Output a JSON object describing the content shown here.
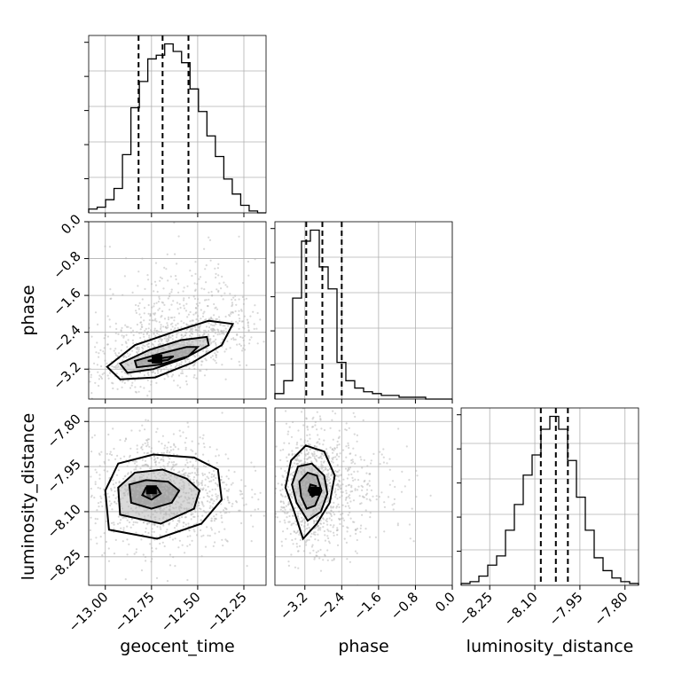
{
  "chart_data": {
    "type": "corner",
    "parameters": [
      {
        "name": "geocent_time",
        "range": [
          -13.09,
          -12.13
        ],
        "ticks": [
          -13.0,
          -12.75,
          -12.5,
          -12.25
        ],
        "tick_labels": [
          "−13.00",
          "−12.75",
          "−12.50",
          "−12.25"
        ],
        "quantiles": [
          -12.82,
          -12.69,
          -12.55
        ],
        "hist": [
          2,
          3,
          7,
          13,
          31,
          56,
          70,
          82,
          84,
          90,
          86,
          80,
          66,
          54,
          41,
          30,
          18,
          10,
          4,
          1,
          0
        ]
      },
      {
        "name": "phase",
        "range": [
          -3.85,
          0.0
        ],
        "ticks": [
          -3.2,
          -2.4,
          -1.6,
          -0.8,
          0.0
        ],
        "tick_labels": [
          "−3.2",
          "−2.4",
          "−1.6",
          "−0.8",
          "0.0"
        ],
        "quantiles": [
          -3.17,
          -2.82,
          -2.4
        ],
        "hist": [
          3,
          10,
          55,
          86,
          92,
          72,
          60,
          20,
          10,
          6,
          4,
          3,
          2,
          2,
          1,
          1,
          1,
          0,
          0,
          0
        ]
      },
      {
        "name": "luminosity_distance",
        "range": [
          -8.345,
          -7.755
        ],
        "ticks": [
          -8.25,
          -8.1,
          -7.95,
          -7.8
        ],
        "tick_labels": [
          "−8.25",
          "−8.10",
          "−7.95",
          "−7.80"
        ],
        "quantiles": [
          -8.08,
          -8.03,
          -7.99
        ],
        "hist": [
          1,
          2,
          5,
          11,
          16,
          30,
          44,
          60,
          71,
          85,
          92,
          85,
          68,
          48,
          30,
          15,
          8,
          4,
          2,
          1
        ]
      }
    ],
    "pairs": [
      {
        "x": "geocent_time",
        "y": "phase",
        "peak": [
          -12.72,
          -3.0
        ],
        "contours": [
          [
            [
              -12.92,
              -3.42
            ],
            [
              -12.99,
              -3.15
            ],
            [
              -12.84,
              -2.68
            ],
            [
              -12.62,
              -2.38
            ],
            [
              -12.44,
              -2.15
            ],
            [
              -12.31,
              -2.22
            ],
            [
              -12.37,
              -2.68
            ],
            [
              -12.53,
              -3.06
            ],
            [
              -12.73,
              -3.38
            ]
          ],
          [
            [
              -12.88,
              -3.28
            ],
            [
              -12.92,
              -3.08
            ],
            [
              -12.76,
              -2.78
            ],
            [
              -12.59,
              -2.57
            ],
            [
              -12.45,
              -2.5
            ],
            [
              -12.44,
              -2.68
            ],
            [
              -12.57,
              -2.96
            ],
            [
              -12.74,
              -3.2
            ]
          ],
          [
            [
              -12.83,
              -3.16
            ],
            [
              -12.84,
              -3.02
            ],
            [
              -12.7,
              -2.86
            ],
            [
              -12.56,
              -2.72
            ],
            [
              -12.5,
              -2.72
            ],
            [
              -12.55,
              -2.92
            ],
            [
              -12.7,
              -3.1
            ]
          ],
          [
            [
              -12.77,
              -3.02
            ],
            [
              -12.7,
              -2.96
            ],
            [
              -12.63,
              -2.92
            ],
            [
              -12.66,
              -3.0
            ],
            [
              -12.72,
              -3.04
            ]
          ]
        ]
      },
      {
        "x": "geocent_time",
        "y": "luminosity_distance",
        "peak": [
          -12.75,
          -8.03
        ],
        "contours": [
          [
            [
              -12.98,
              -8.16
            ],
            [
              -13.0,
              -8.03
            ],
            [
              -12.93,
              -7.94
            ],
            [
              -12.74,
              -7.91
            ],
            [
              -12.52,
              -7.92
            ],
            [
              -12.39,
              -7.96
            ],
            [
              -12.37,
              -8.06
            ],
            [
              -12.48,
              -8.14
            ],
            [
              -12.72,
              -8.19
            ]
          ],
          [
            [
              -12.92,
              -8.11
            ],
            [
              -12.93,
              -8.02
            ],
            [
              -12.84,
              -7.97
            ],
            [
              -12.69,
              -7.96
            ],
            [
              -12.56,
              -7.99
            ],
            [
              -12.49,
              -8.03
            ],
            [
              -12.52,
              -8.09
            ],
            [
              -12.7,
              -8.14
            ]
          ],
          [
            [
              -12.86,
              -8.07
            ],
            [
              -12.87,
              -8.01
            ],
            [
              -12.78,
              -7.995
            ],
            [
              -12.66,
              -8.0
            ],
            [
              -12.6,
              -8.03
            ],
            [
              -12.64,
              -8.07
            ],
            [
              -12.75,
              -8.09
            ]
          ],
          [
            [
              -12.8,
              -8.045
            ],
            [
              -12.78,
              -8.02
            ],
            [
              -12.72,
              -8.02
            ],
            [
              -12.7,
              -8.04
            ],
            [
              -12.75,
              -8.06
            ]
          ]
        ]
      },
      {
        "x": "phase",
        "y": "luminosity_distance",
        "peak": [
          -2.98,
          -8.035
        ],
        "contours": [
          [
            [
              -3.43,
              -8.1
            ],
            [
              -3.62,
              -8.02
            ],
            [
              -3.5,
              -7.93
            ],
            [
              -3.18,
              -7.88
            ],
            [
              -2.78,
              -7.9
            ],
            [
              -2.55,
              -7.98
            ],
            [
              -2.66,
              -8.07
            ],
            [
              -2.94,
              -8.14
            ],
            [
              -3.24,
              -8.19
            ]
          ],
          [
            [
              -3.38,
              -8.07
            ],
            [
              -3.48,
              -8.01
            ],
            [
              -3.35,
              -7.95
            ],
            [
              -3.05,
              -7.94
            ],
            [
              -2.78,
              -7.98
            ],
            [
              -2.71,
              -8.04
            ],
            [
              -2.85,
              -8.1
            ],
            [
              -3.14,
              -8.13
            ]
          ],
          [
            [
              -3.28,
              -8.05
            ],
            [
              -3.32,
              -8.0
            ],
            [
              -3.14,
              -7.97
            ],
            [
              -2.94,
              -7.98
            ],
            [
              -2.84,
              -8.03
            ],
            [
              -2.98,
              -8.08
            ],
            [
              -3.16,
              -8.09
            ]
          ],
          [
            [
              -3.12,
              -8.03
            ],
            [
              -3.08,
              -8.01
            ],
            [
              -2.96,
              -8.015
            ],
            [
              -2.94,
              -8.04
            ],
            [
              -3.04,
              -8.05
            ]
          ]
        ]
      }
    ],
    "grid": true,
    "scatter_color": "#b8b8b8",
    "density_color": "#000000"
  }
}
